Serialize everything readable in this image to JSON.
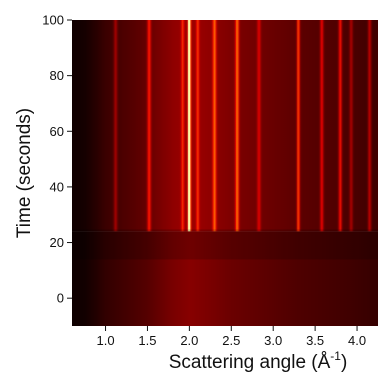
{
  "chart_data": {
    "type": "heatmap",
    "title": "",
    "xlabel": "Scattering angle (Å",
    "xlabel_superscript": "-1",
    "xlabel_close": ")",
    "ylabel": "Time (seconds)",
    "xlim": [
      0.6,
      4.25
    ],
    "ylim": [
      -10,
      100
    ],
    "x_ticks": [
      1.0,
      1.5,
      2.0,
      2.5,
      3.0,
      3.5,
      4.0
    ],
    "x_tick_labels": [
      "1.0",
      "1.5",
      "2.0",
      "2.5",
      "3.0",
      "3.5",
      "4.0"
    ],
    "y_ticks": [
      0,
      20,
      40,
      60,
      80,
      100
    ],
    "y_tick_labels": [
      "0",
      "20",
      "40",
      "60",
      "80",
      "100"
    ],
    "colormap": "black-red-yellow",
    "onset_time": 24,
    "background_intensity": [
      [
        0.6,
        0.04
      ],
      [
        0.75,
        0.05
      ],
      [
        0.9,
        0.1
      ],
      [
        1.0,
        0.14
      ],
      [
        1.2,
        0.18
      ],
      [
        1.5,
        0.24
      ],
      [
        1.8,
        0.34
      ],
      [
        2.0,
        0.38
      ],
      [
        2.2,
        0.35
      ],
      [
        2.5,
        0.3
      ],
      [
        2.8,
        0.27
      ],
      [
        3.0,
        0.25
      ],
      [
        3.3,
        0.22
      ],
      [
        3.6,
        0.2
      ],
      [
        3.9,
        0.18
      ],
      [
        4.25,
        0.15
      ]
    ],
    "peaks": [
      {
        "position": 1.12,
        "intensity": 0.22,
        "width": 0.022
      },
      {
        "position": 1.52,
        "intensity": 0.38,
        "width": 0.022
      },
      {
        "position": 1.92,
        "intensity": 0.3,
        "width": 0.018
      },
      {
        "position": 2.0,
        "intensity": 1.0,
        "width": 0.016
      },
      {
        "position": 2.1,
        "intensity": 0.32,
        "width": 0.018
      },
      {
        "position": 2.3,
        "intensity": 0.45,
        "width": 0.022
      },
      {
        "position": 2.57,
        "intensity": 0.5,
        "width": 0.022
      },
      {
        "position": 2.83,
        "intensity": 0.25,
        "width": 0.022
      },
      {
        "position": 3.3,
        "intensity": 0.5,
        "width": 0.018
      },
      {
        "position": 3.58,
        "intensity": 0.34,
        "width": 0.02
      },
      {
        "position": 3.8,
        "intensity": 0.4,
        "width": 0.02
      },
      {
        "position": 3.93,
        "intensity": 0.22,
        "width": 0.02
      },
      {
        "position": 4.15,
        "intensity": 0.28,
        "width": 0.02
      }
    ]
  }
}
